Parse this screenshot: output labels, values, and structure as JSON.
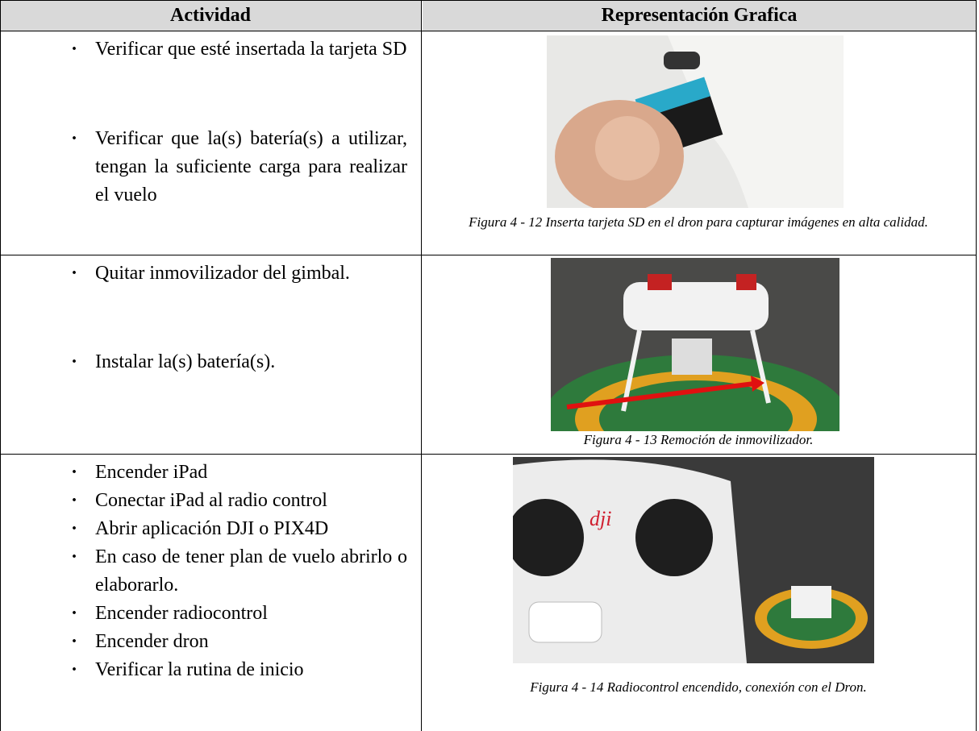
{
  "table": {
    "headers": [
      "Actividad",
      "Representación Grafica"
    ],
    "rows": [
      {
        "items": [
          "Verificar que esté insertada la tarjeta SD",
          "Verificar que la(s) batería(s) a utilizar, tengan la suficiente carga para realizar el vuelo"
        ],
        "caption": "Figura 4 - 12 Inserta tarjeta SD en el dron para capturar imágenes en alta calidad."
      },
      {
        "items": [
          "Quitar inmovilizador del gimbal.",
          "Instalar la(s) batería(s)."
        ],
        "caption": "Figura 4 - 13 Remoción de inmovilizador."
      },
      {
        "items": [
          "Encender iPad",
          "Conectar iPad al radio control",
          "Abrir aplicación DJI o PIX4D",
          "En caso de tener plan de vuelo abrirlo o elaborarlo.",
          "Encender radiocontrol",
          "Encender dron",
          "Verificar la rutina de inicio"
        ],
        "caption": "Figura 4 - 14 Radiocontrol encendido, conexión con el Dron."
      }
    ]
  }
}
